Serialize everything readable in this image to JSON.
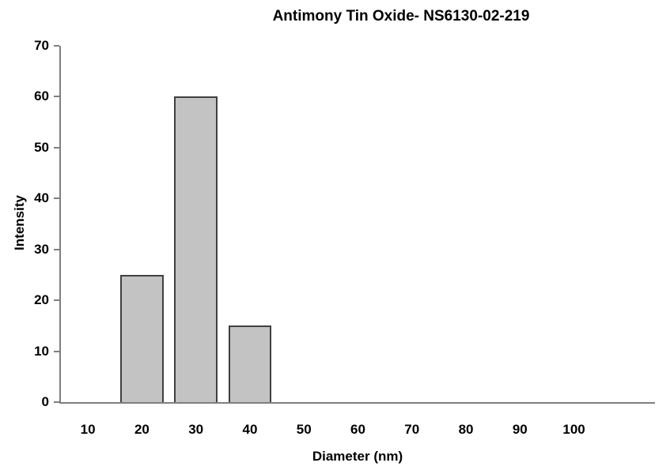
{
  "chart_data": {
    "type": "bar",
    "title": "Antimony Tin Oxide- NS6130-02-219",
    "xlabel": "Diameter (nm)",
    "ylabel": "Intensity",
    "categories": [
      "10",
      "20",
      "30",
      "40",
      "50",
      "60",
      "70",
      "80",
      "90",
      "100"
    ],
    "values": [
      0,
      25,
      60,
      15,
      0,
      0,
      0,
      0,
      0,
      0
    ],
    "ylim": [
      0,
      70
    ],
    "y_tick_step": 10,
    "x_slots": 11,
    "grid": "off",
    "legend": "none",
    "colors": {
      "bar_fill": "#c3c3c3",
      "bar_border": "#404040",
      "axis": "#7f7f7f",
      "text": "#000000"
    }
  }
}
